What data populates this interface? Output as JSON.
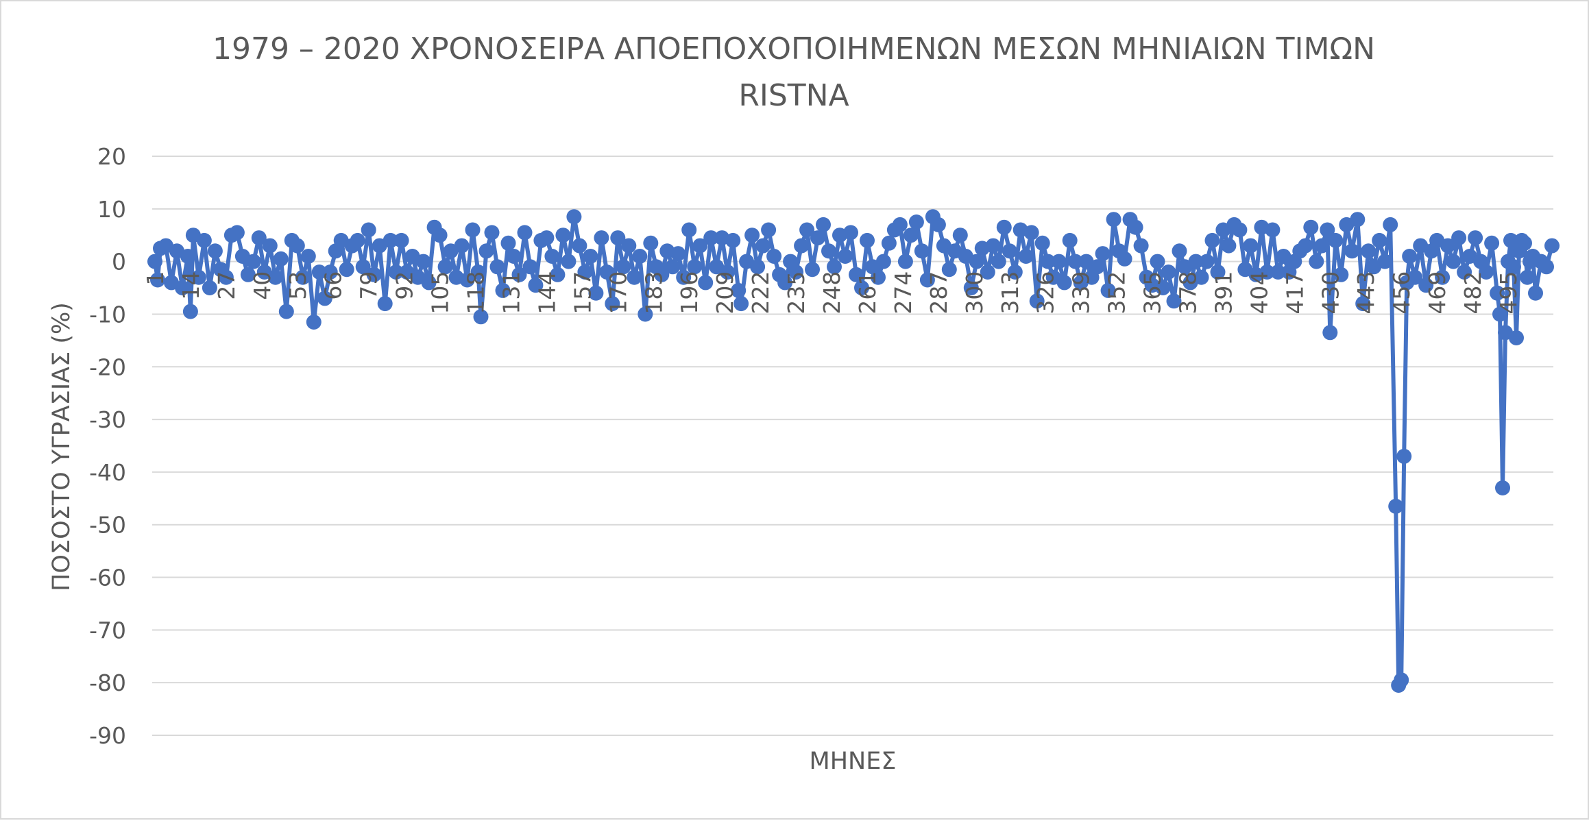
{
  "chart_data": {
    "type": "line",
    "title_line1": "1979 – 2020 ΧΡΟΝΟΣΕΙΡΑ ΑΠΟΕΠΟΧΟΠΟΙΗΜΕΝΩΝ ΜΕΣΩΝ ΜΗΝΙΑΙΩΝ ΤΙΜΩΝ",
    "title_line2": "RISTNA",
    "xlabel": "ΜΗΝΕΣ",
    "ylabel": "ΠΟΣΟΣΤΟ ΥΓΡΑΣΙΑΣ (%)",
    "ylim": [
      -90,
      20
    ],
    "ytick_step": 10,
    "xlim": [
      1,
      504
    ],
    "xtick_labels": [
      "1",
      "14",
      "27",
      "40",
      "53",
      "66",
      "79",
      "92",
      "105",
      "118",
      "131",
      "144",
      "157",
      "170",
      "183",
      "196",
      "209",
      "222",
      "235",
      "248",
      "261",
      "274",
      "287",
      "300",
      "313",
      "326",
      "339",
      "352",
      "365",
      "378",
      "391",
      "404",
      "417",
      "430",
      "443",
      "456",
      "469",
      "482",
      "495"
    ],
    "grid": true,
    "legend": "none",
    "marker": "circle",
    "series_name": "RISTNA",
    "series_color": "#4472c4",
    "points": [
      {
        "x": 1,
        "y": 0
      },
      {
        "x": 2,
        "y": -3.5
      },
      {
        "x": 3,
        "y": 2.5
      },
      {
        "x": 5,
        "y": 3
      },
      {
        "x": 7,
        "y": -4
      },
      {
        "x": 9,
        "y": 2
      },
      {
        "x": 11,
        "y": -5
      },
      {
        "x": 13,
        "y": 1
      },
      {
        "x": 14,
        "y": -9.5
      },
      {
        "x": 15,
        "y": 5
      },
      {
        "x": 17,
        "y": -3
      },
      {
        "x": 19,
        "y": 4
      },
      {
        "x": 21,
        "y": -5
      },
      {
        "x": 23,
        "y": 2
      },
      {
        "x": 25,
        "y": -1.5
      },
      {
        "x": 27,
        "y": -3
      },
      {
        "x": 29,
        "y": 5
      },
      {
        "x": 31,
        "y": 5.5
      },
      {
        "x": 33,
        "y": 1
      },
      {
        "x": 35,
        "y": -2.5
      },
      {
        "x": 37,
        "y": 0
      },
      {
        "x": 39,
        "y": 4.5
      },
      {
        "x": 41,
        "y": -2
      },
      {
        "x": 43,
        "y": 3
      },
      {
        "x": 45,
        "y": -3
      },
      {
        "x": 47,
        "y": 0.5
      },
      {
        "x": 49,
        "y": -9.5
      },
      {
        "x": 51,
        "y": 4
      },
      {
        "x": 53,
        "y": 3
      },
      {
        "x": 55,
        "y": -3
      },
      {
        "x": 57,
        "y": 1
      },
      {
        "x": 59,
        "y": -11.5
      },
      {
        "x": 61,
        "y": -2
      },
      {
        "x": 63,
        "y": -7
      },
      {
        "x": 65,
        "y": -2
      },
      {
        "x": 67,
        "y": 2
      },
      {
        "x": 69,
        "y": 4
      },
      {
        "x": 71,
        "y": -1.5
      },
      {
        "x": 73,
        "y": 3
      },
      {
        "x": 75,
        "y": 4
      },
      {
        "x": 77,
        "y": -1
      },
      {
        "x": 79,
        "y": 6
      },
      {
        "x": 81,
        "y": -2.5
      },
      {
        "x": 83,
        "y": 3
      },
      {
        "x": 85,
        "y": -8
      },
      {
        "x": 87,
        "y": 4
      },
      {
        "x": 89,
        "y": -2
      },
      {
        "x": 91,
        "y": 4
      },
      {
        "x": 93,
        "y": -2
      },
      {
        "x": 95,
        "y": 1
      },
      {
        "x": 97,
        "y": -3
      },
      {
        "x": 99,
        "y": 0
      },
      {
        "x": 101,
        "y": -4
      },
      {
        "x": 103,
        "y": 6.5
      },
      {
        "x": 105,
        "y": 5
      },
      {
        "x": 107,
        "y": -1
      },
      {
        "x": 109,
        "y": 2
      },
      {
        "x": 111,
        "y": -3
      },
      {
        "x": 113,
        "y": 3
      },
      {
        "x": 115,
        "y": -3.5
      },
      {
        "x": 117,
        "y": 6
      },
      {
        "x": 119,
        "y": -2
      },
      {
        "x": 120,
        "y": -10.5
      },
      {
        "x": 122,
        "y": 2
      },
      {
        "x": 124,
        "y": 5.5
      },
      {
        "x": 126,
        "y": -1
      },
      {
        "x": 128,
        "y": -5.5
      },
      {
        "x": 130,
        "y": 3.5
      },
      {
        "x": 132,
        "y": 1
      },
      {
        "x": 134,
        "y": -2.5
      },
      {
        "x": 136,
        "y": 5.5
      },
      {
        "x": 138,
        "y": -1
      },
      {
        "x": 140,
        "y": -4.5
      },
      {
        "x": 142,
        "y": 4
      },
      {
        "x": 144,
        "y": 4.5
      },
      {
        "x": 146,
        "y": 1
      },
      {
        "x": 148,
        "y": -2.5
      },
      {
        "x": 150,
        "y": 5
      },
      {
        "x": 152,
        "y": 0
      },
      {
        "x": 154,
        "y": 8.5
      },
      {
        "x": 156,
        "y": 3
      },
      {
        "x": 158,
        "y": -2
      },
      {
        "x": 160,
        "y": 1
      },
      {
        "x": 162,
        "y": -6
      },
      {
        "x": 164,
        "y": 4.5
      },
      {
        "x": 166,
        "y": -2
      },
      {
        "x": 168,
        "y": -8
      },
      {
        "x": 170,
        "y": 4.5
      },
      {
        "x": 172,
        "y": -1
      },
      {
        "x": 174,
        "y": 3
      },
      {
        "x": 176,
        "y": -3
      },
      {
        "x": 178,
        "y": 1
      },
      {
        "x": 180,
        "y": -10
      },
      {
        "x": 182,
        "y": 3.5
      },
      {
        "x": 184,
        "y": -1
      },
      {
        "x": 186,
        "y": -2.5
      },
      {
        "x": 188,
        "y": 2
      },
      {
        "x": 190,
        "y": -1
      },
      {
        "x": 192,
        "y": 1.5
      },
      {
        "x": 194,
        "y": -3
      },
      {
        "x": 196,
        "y": 6
      },
      {
        "x": 198,
        "y": -1
      },
      {
        "x": 200,
        "y": 3
      },
      {
        "x": 202,
        "y": -4
      },
      {
        "x": 204,
        "y": 4.5
      },
      {
        "x": 206,
        "y": -1
      },
      {
        "x": 208,
        "y": 4.5
      },
      {
        "x": 210,
        "y": -2
      },
      {
        "x": 212,
        "y": 4
      },
      {
        "x": 214,
        "y": -5.5
      },
      {
        "x": 215,
        "y": -8
      },
      {
        "x": 217,
        "y": 0
      },
      {
        "x": 219,
        "y": 5
      },
      {
        "x": 221,
        "y": -1
      },
      {
        "x": 223,
        "y": 3
      },
      {
        "x": 225,
        "y": 6
      },
      {
        "x": 227,
        "y": 1
      },
      {
        "x": 229,
        "y": -2.5
      },
      {
        "x": 231,
        "y": -4
      },
      {
        "x": 233,
        "y": 0
      },
      {
        "x": 235,
        "y": -2
      },
      {
        "x": 237,
        "y": 3
      },
      {
        "x": 239,
        "y": 6
      },
      {
        "x": 241,
        "y": -1.5
      },
      {
        "x": 243,
        "y": 4.5
      },
      {
        "x": 245,
        "y": 7
      },
      {
        "x": 247,
        "y": 2
      },
      {
        "x": 249,
        "y": -1
      },
      {
        "x": 251,
        "y": 5
      },
      {
        "x": 253,
        "y": 1
      },
      {
        "x": 255,
        "y": 5.5
      },
      {
        "x": 257,
        "y": -2.5
      },
      {
        "x": 259,
        "y": -5
      },
      {
        "x": 261,
        "y": 4
      },
      {
        "x": 263,
        "y": -1
      },
      {
        "x": 265,
        "y": -3
      },
      {
        "x": 267,
        "y": 0
      },
      {
        "x": 269,
        "y": 3.5
      },
      {
        "x": 271,
        "y": 6
      },
      {
        "x": 273,
        "y": 7
      },
      {
        "x": 275,
        "y": 0
      },
      {
        "x": 277,
        "y": 5
      },
      {
        "x": 279,
        "y": 7.5
      },
      {
        "x": 281,
        "y": 2
      },
      {
        "x": 283,
        "y": -3.5
      },
      {
        "x": 285,
        "y": 8.5
      },
      {
        "x": 287,
        "y": 7
      },
      {
        "x": 289,
        "y": 3
      },
      {
        "x": 291,
        "y": -1.5
      },
      {
        "x": 293,
        "y": 2
      },
      {
        "x": 295,
        "y": 5
      },
      {
        "x": 297,
        "y": 1
      },
      {
        "x": 299,
        "y": -5
      },
      {
        "x": 301,
        "y": 0
      },
      {
        "x": 303,
        "y": 2.5
      },
      {
        "x": 305,
        "y": -2
      },
      {
        "x": 307,
        "y": 3
      },
      {
        "x": 309,
        "y": 0
      },
      {
        "x": 311,
        "y": 6.5
      },
      {
        "x": 313,
        "y": 2
      },
      {
        "x": 315,
        "y": -2
      },
      {
        "x": 317,
        "y": 6
      },
      {
        "x": 319,
        "y": 1
      },
      {
        "x": 321,
        "y": 5.5
      },
      {
        "x": 323,
        "y": -7.5
      },
      {
        "x": 325,
        "y": 3.5
      },
      {
        "x": 327,
        "y": 0
      },
      {
        "x": 329,
        "y": -3
      },
      {
        "x": 331,
        "y": 0
      },
      {
        "x": 333,
        "y": -4
      },
      {
        "x": 335,
        "y": 4
      },
      {
        "x": 337,
        "y": 0
      },
      {
        "x": 339,
        "y": -4
      },
      {
        "x": 341,
        "y": 0
      },
      {
        "x": 343,
        "y": -3
      },
      {
        "x": 345,
        "y": -1
      },
      {
        "x": 347,
        "y": 1.5
      },
      {
        "x": 349,
        "y": -5.5
      },
      {
        "x": 351,
        "y": 8
      },
      {
        "x": 353,
        "y": 2
      },
      {
        "x": 355,
        "y": 0.5
      },
      {
        "x": 357,
        "y": 8
      },
      {
        "x": 359,
        "y": 6.5
      },
      {
        "x": 361,
        "y": 3
      },
      {
        "x": 363,
        "y": -3
      },
      {
        "x": 365,
        "y": -4.5
      },
      {
        "x": 367,
        "y": 0
      },
      {
        "x": 369,
        "y": -5
      },
      {
        "x": 371,
        "y": -2
      },
      {
        "x": 373,
        "y": -7.5
      },
      {
        "x": 375,
        "y": 2
      },
      {
        "x": 377,
        "y": -1
      },
      {
        "x": 379,
        "y": -4
      },
      {
        "x": 381,
        "y": 0
      },
      {
        "x": 383,
        "y": -3
      },
      {
        "x": 385,
        "y": 0
      },
      {
        "x": 387,
        "y": 4
      },
      {
        "x": 389,
        "y": -2
      },
      {
        "x": 391,
        "y": 6
      },
      {
        "x": 393,
        "y": 3
      },
      {
        "x": 395,
        "y": 7
      },
      {
        "x": 397,
        "y": 6
      },
      {
        "x": 399,
        "y": -1.5
      },
      {
        "x": 401,
        "y": 3
      },
      {
        "x": 403,
        "y": -2.5
      },
      {
        "x": 405,
        "y": 6.5
      },
      {
        "x": 407,
        "y": -2
      },
      {
        "x": 409,
        "y": 6
      },
      {
        "x": 411,
        "y": -2
      },
      {
        "x": 413,
        "y": 1
      },
      {
        "x": 415,
        "y": -2
      },
      {
        "x": 417,
        "y": 0
      },
      {
        "x": 419,
        "y": 2
      },
      {
        "x": 421,
        "y": 3
      },
      {
        "x": 423,
        "y": 6.5
      },
      {
        "x": 425,
        "y": 0
      },
      {
        "x": 427,
        "y": 3
      },
      {
        "x": 429,
        "y": 6
      },
      {
        "x": 430,
        "y": -13.5
      },
      {
        "x": 432,
        "y": 4
      },
      {
        "x": 434,
        "y": -2.5
      },
      {
        "x": 436,
        "y": 7
      },
      {
        "x": 438,
        "y": 2
      },
      {
        "x": 440,
        "y": 8
      },
      {
        "x": 442,
        "y": -8
      },
      {
        "x": 444,
        "y": 2
      },
      {
        "x": 446,
        "y": -1
      },
      {
        "x": 448,
        "y": 4
      },
      {
        "x": 450,
        "y": 0
      },
      {
        "x": 452,
        "y": 7
      },
      {
        "x": 454,
        "y": -46.5
      },
      {
        "x": 455,
        "y": -80.5
      },
      {
        "x": 456,
        "y": -79.5
      },
      {
        "x": 457,
        "y": -37
      },
      {
        "x": 458,
        "y": -4
      },
      {
        "x": 459,
        "y": 1
      },
      {
        "x": 461,
        "y": -3
      },
      {
        "x": 463,
        "y": 3
      },
      {
        "x": 465,
        "y": -4.5
      },
      {
        "x": 467,
        "y": 2
      },
      {
        "x": 469,
        "y": 4
      },
      {
        "x": 471,
        "y": -3
      },
      {
        "x": 473,
        "y": 3
      },
      {
        "x": 475,
        "y": 0
      },
      {
        "x": 477,
        "y": 4.5
      },
      {
        "x": 479,
        "y": -2
      },
      {
        "x": 481,
        "y": 1
      },
      {
        "x": 483,
        "y": 4.5
      },
      {
        "x": 485,
        "y": 0
      },
      {
        "x": 487,
        "y": -2
      },
      {
        "x": 489,
        "y": 3.5
      },
      {
        "x": 491,
        "y": -6
      },
      {
        "x": 492,
        "y": -10
      },
      {
        "x": 493,
        "y": -43
      },
      {
        "x": 494,
        "y": -13.5
      },
      {
        "x": 495,
        "y": 0
      },
      {
        "x": 496,
        "y": 4
      },
      {
        "x": 497,
        "y": -1
      },
      {
        "x": 498,
        "y": -14.5
      },
      {
        "x": 499,
        "y": 2
      },
      {
        "x": 500,
        "y": 4
      },
      {
        "x": 501,
        "y": 3.5
      },
      {
        "x": 502,
        "y": -3
      },
      {
        "x": 503,
        "y": 0
      },
      {
        "x": 504,
        "y": 1
      },
      {
        "x": 505,
        "y": -6
      },
      {
        "x": 507,
        "y": 0
      },
      {
        "x": 509,
        "y": -1
      },
      {
        "x": 511,
        "y": 3
      }
    ]
  }
}
